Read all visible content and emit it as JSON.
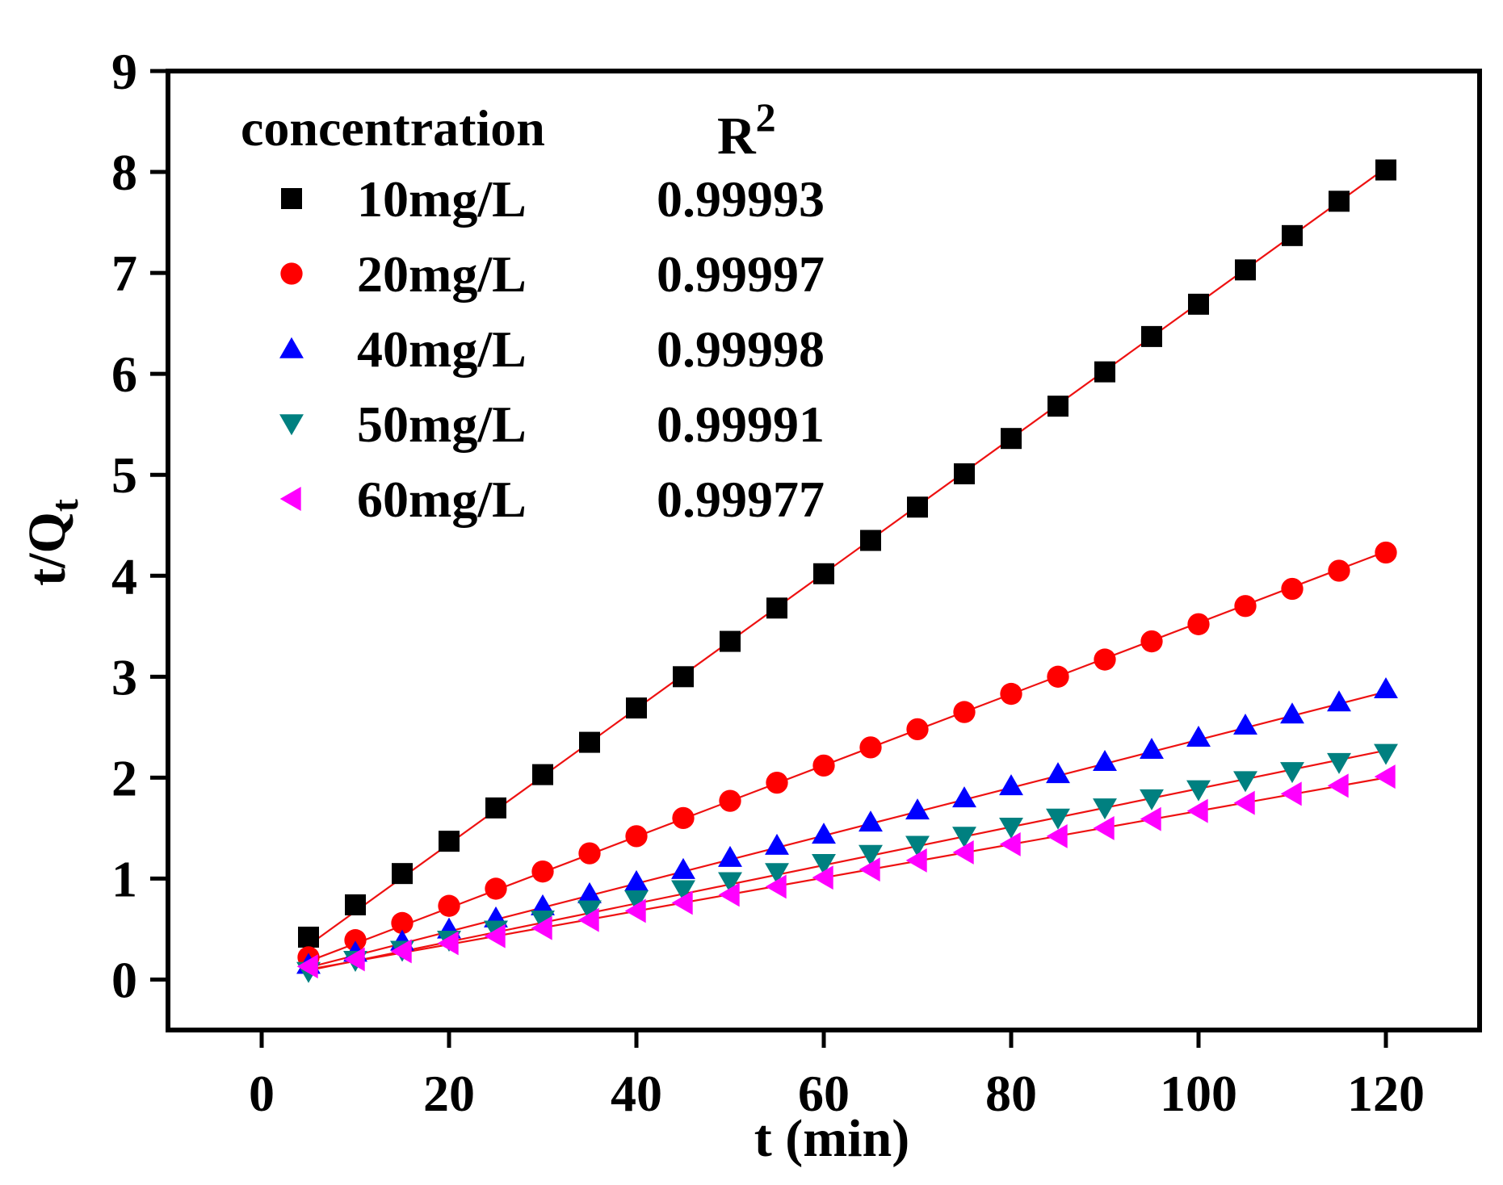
{
  "chart_data": {
    "type": "scatter",
    "title": "",
    "xlabel": "t (min)",
    "ylabel_main": "t/Q",
    "ylabel_sub": "t",
    "xlim": [
      -10,
      130
    ],
    "ylim": [
      -0.5,
      9
    ],
    "xticks": [
      0,
      20,
      40,
      60,
      80,
      100,
      120
    ],
    "yticks": [
      0,
      1,
      2,
      3,
      4,
      5,
      6,
      7,
      8,
      9
    ],
    "grid": false,
    "legend": {
      "placement": "top-left",
      "header_concentration": "concentration",
      "header_r2_base": "R",
      "header_r2_sup": "2"
    },
    "fit_color": "#ee1111",
    "x": [
      5,
      10,
      15,
      20,
      25,
      30,
      35,
      40,
      45,
      50,
      55,
      60,
      65,
      70,
      75,
      80,
      85,
      90,
      95,
      100,
      105,
      110,
      115,
      120
    ],
    "series": [
      {
        "name": "10mg/L",
        "r2": "0.99993",
        "marker": "square",
        "color": "#000000",
        "values": [
          0.42,
          0.74,
          1.05,
          1.37,
          1.7,
          2.03,
          2.35,
          2.69,
          3.0,
          3.35,
          3.68,
          4.02,
          4.35,
          4.68,
          5.01,
          5.36,
          5.68,
          6.02,
          6.37,
          6.69,
          7.03,
          7.37,
          7.71,
          8.02
        ],
        "fit": [
          0.34,
          8.04
        ]
      },
      {
        "name": "20mg/L",
        "r2": "0.99997",
        "marker": "circle",
        "color": "#ff0000",
        "values": [
          0.22,
          0.39,
          0.56,
          0.73,
          0.9,
          1.07,
          1.25,
          1.42,
          1.6,
          1.77,
          1.95,
          2.12,
          2.3,
          2.48,
          2.65,
          2.83,
          3.0,
          3.17,
          3.35,
          3.52,
          3.7,
          3.87,
          4.05,
          4.23
        ],
        "fit": [
          0.18,
          4.24
        ]
      },
      {
        "name": "40mg/L",
        "r2": "0.99998",
        "marker": "triangle-up",
        "color": "#0000ff",
        "values": [
          0.15,
          0.27,
          0.38,
          0.5,
          0.61,
          0.73,
          0.85,
          0.97,
          1.09,
          1.21,
          1.33,
          1.44,
          1.56,
          1.68,
          1.8,
          1.92,
          2.04,
          2.16,
          2.28,
          2.4,
          2.52,
          2.63,
          2.75,
          2.88
        ],
        "fit": [
          0.12,
          2.85
        ]
      },
      {
        "name": "50mg/L",
        "r2": "0.99991",
        "marker": "triangle-down",
        "color": "#008080",
        "values": [
          0.08,
          0.19,
          0.29,
          0.39,
          0.49,
          0.59,
          0.69,
          0.79,
          0.89,
          0.97,
          1.06,
          1.15,
          1.24,
          1.33,
          1.42,
          1.51,
          1.6,
          1.7,
          1.79,
          1.88,
          1.97,
          2.06,
          2.15,
          2.24
        ],
        "fit": [
          0.09,
          2.27
        ]
      },
      {
        "name": "60mg/L",
        "r2": "0.99977",
        "marker": "triangle-left",
        "color": "#ff00ff",
        "values": [
          0.13,
          0.2,
          0.28,
          0.36,
          0.43,
          0.51,
          0.59,
          0.68,
          0.76,
          0.84,
          0.92,
          1.01,
          1.09,
          1.18,
          1.26,
          1.34,
          1.42,
          1.5,
          1.59,
          1.67,
          1.75,
          1.84,
          1.92,
          2.01
        ],
        "fit": [
          0.1,
          2.0
        ]
      }
    ]
  }
}
